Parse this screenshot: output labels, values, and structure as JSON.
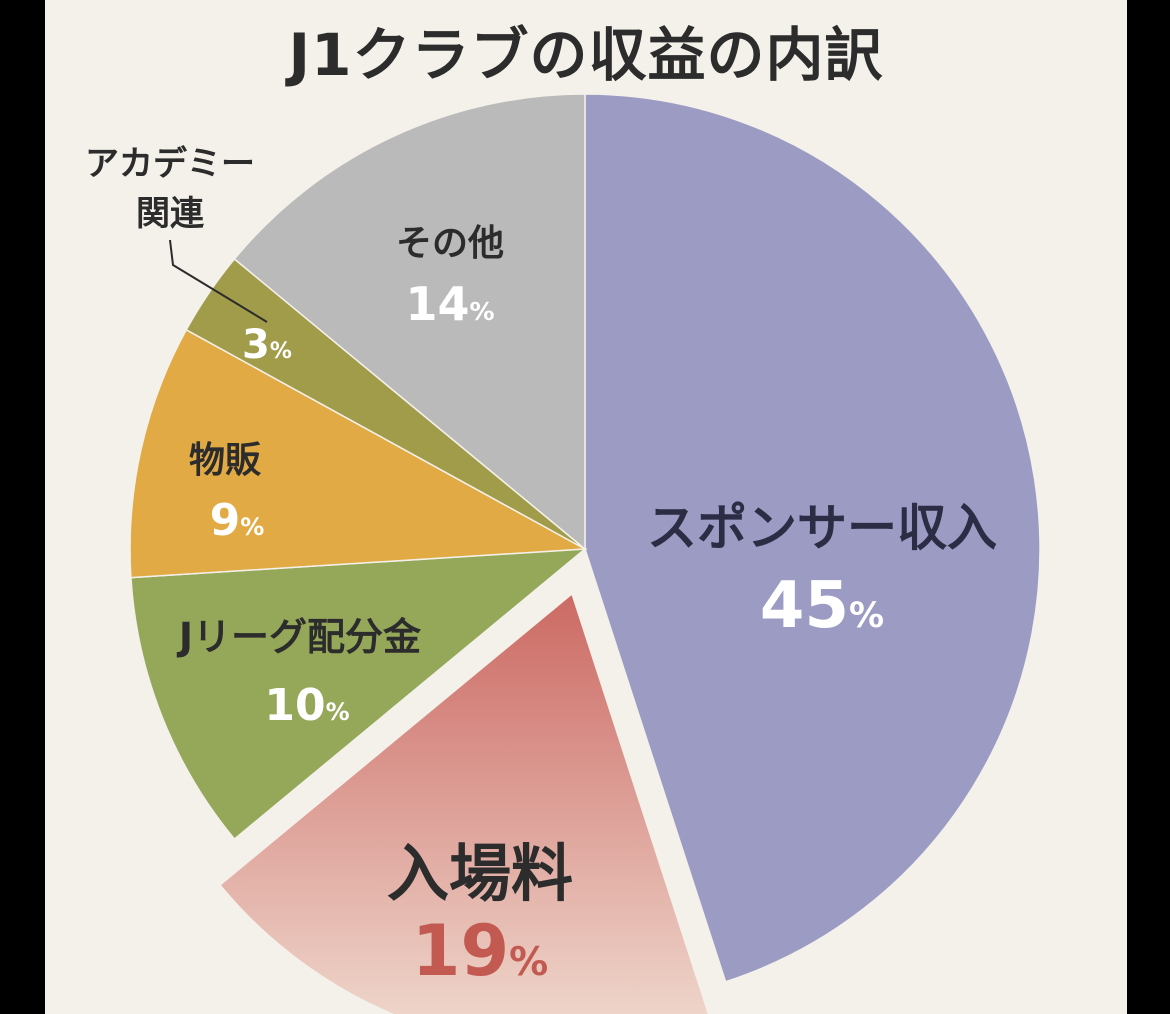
{
  "chart_data": {
    "type": "pie",
    "title": "J1クラブの収益の内訳",
    "value_suffix": "%",
    "slices": [
      {
        "label": "スポンサー収入",
        "value": 45,
        "color": "#9b9bc3"
      },
      {
        "label": "入場料",
        "value": 19,
        "color": "#cc6a64",
        "exploded": true
      },
      {
        "label": "Jリーグ配分金",
        "value": 10,
        "color": "#95a85a"
      },
      {
        "label": "物販",
        "value": 9,
        "color": "#e2aa44"
      },
      {
        "label": "アカデミー関連",
        "value": 3,
        "color": "#a19c4a",
        "label_lines": [
          "アカデミー",
          "関連"
        ]
      },
      {
        "label": "その他",
        "value": 14,
        "color": "#bbbaba"
      }
    ]
  }
}
